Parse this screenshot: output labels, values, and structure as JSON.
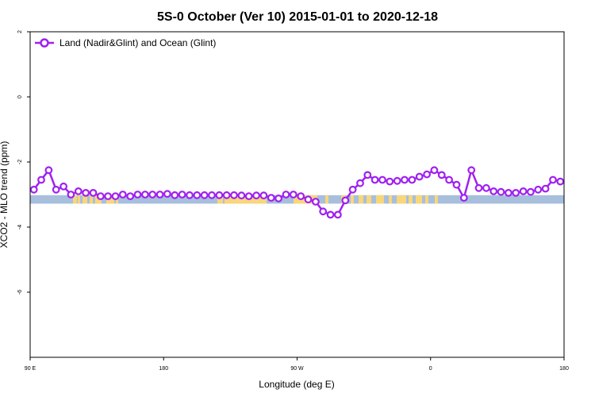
{
  "chart_data": {
    "type": "line",
    "title": "5S-0 October (Ver 10)   2015-01-01 to 2020-12-18",
    "xlabel": "Longitude (deg E)",
    "ylabel": "XCO2 - MLO trend (ppm)",
    "xlim": [
      90,
      450
    ],
    "ylim": [
      -8,
      2
    ],
    "x_ticks": [
      {
        "value": 90,
        "label": "90 E"
      },
      {
        "value": 180,
        "label": "180"
      },
      {
        "value": 270,
        "label": "90 W"
      },
      {
        "value": 360,
        "label": "0"
      },
      {
        "value": 450,
        "label": "180"
      }
    ],
    "y_ticks": [
      {
        "value": 2,
        "label": "2"
      },
      {
        "value": 0,
        "label": "0"
      },
      {
        "value": -2,
        "label": "-2"
      },
      {
        "value": -4,
        "label": "-4"
      },
      {
        "value": -6,
        "label": "-6"
      }
    ],
    "grid": false,
    "legend": {
      "placement": "top-left"
    },
    "band": {
      "y_top": -3.02,
      "y_bottom": -3.28,
      "ocean_color": "#a7bfdc",
      "land_color": "#f7d67c"
    },
    "series": [
      {
        "name": "Land (Nadir&Glint) and Ocean (Glint)",
        "color": "#a020f0",
        "x": [
          92.5,
          97.5,
          102.5,
          107.5,
          112.5,
          117.5,
          122.5,
          127.5,
          132.5,
          137.5,
          142.5,
          147.5,
          152.5,
          157.5,
          162.5,
          167.5,
          172.5,
          177.5,
          182.5,
          187.5,
          192.5,
          197.5,
          202.5,
          207.5,
          212.5,
          217.5,
          222.5,
          227.5,
          232.5,
          237.5,
          242.5,
          247.5,
          252.5,
          257.5,
          262.5,
          267.5,
          272.5,
          277.5,
          282.5,
          287.5,
          292.5,
          297.5,
          302.5,
          307.5,
          312.5,
          317.5,
          322.5,
          327.5,
          332.5,
          337.5,
          342.5,
          347.5,
          352.5,
          357.5,
          362.5,
          367.5,
          372.5,
          377.5,
          382.5,
          387.5,
          392.5,
          397.5,
          402.5,
          407.5,
          412.5,
          417.5,
          422.5,
          427.5,
          432.5,
          437.5,
          442.5,
          447.5
        ],
        "y": [
          -2.85,
          -2.55,
          -2.25,
          -2.85,
          -2.75,
          -3.0,
          -2.9,
          -2.95,
          -2.95,
          -3.05,
          -3.05,
          -3.05,
          -3.0,
          -3.05,
          -3.0,
          -3.0,
          -3.0,
          -3.0,
          -2.98,
          -3.02,
          -3.0,
          -3.02,
          -3.02,
          -3.02,
          -3.02,
          -3.02,
          -3.02,
          -3.02,
          -3.03,
          -3.05,
          -3.03,
          -3.03,
          -3.1,
          -3.12,
          -3.0,
          -3.0,
          -3.05,
          -3.15,
          -3.22,
          -3.52,
          -3.62,
          -3.62,
          -3.18,
          -2.85,
          -2.65,
          -2.4,
          -2.55,
          -2.55,
          -2.6,
          -2.58,
          -2.55,
          -2.55,
          -2.45,
          -2.38,
          -2.25,
          -2.4,
          -2.55,
          -2.7,
          -3.1,
          -2.25,
          -2.8,
          -2.8,
          -2.9,
          -2.92,
          -2.95,
          -2.95,
          -2.9,
          -2.92,
          -2.85,
          -2.82,
          -2.55,
          -2.6
        ],
        "line_width": 2
      }
    ]
  }
}
